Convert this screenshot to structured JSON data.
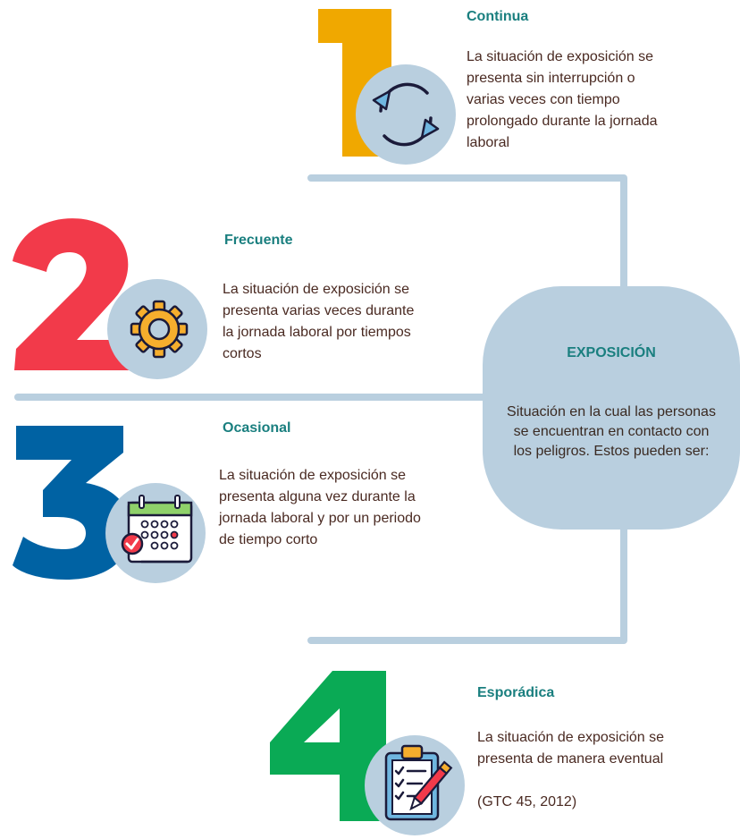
{
  "hub": {
    "title": "EXPOSICIÓN",
    "description": "Situación en la cual las personas se encuentran en contacto con los peligros. Estos pueden ser:"
  },
  "items": [
    {
      "number": "1",
      "color": "#f0a800",
      "icon": "refresh-cycle-icon",
      "title": "Continua",
      "description": "La situación de exposición se presenta sin interrupción o varias veces con tiempo prolongado durante la jornada laboral"
    },
    {
      "number": "2",
      "color": "#f23a4a",
      "icon": "gear-icon",
      "title": "Frecuente",
      "description": "La situación de exposición se presenta varias veces durante la jornada laboral por tiempos cortos"
    },
    {
      "number": "3",
      "color": "#0062a3",
      "icon": "calendar-icon",
      "title": "Ocasional",
      "description": "La situación de exposición se presenta alguna vez durante la jornada laboral y por un periodo de tiempo corto"
    },
    {
      "number": "4",
      "color": "#0aaa55",
      "icon": "clipboard-checklist-icon",
      "title": "Esporádica",
      "description": "La situación de exposición se presenta de manera eventual",
      "citation": "(GTC 45, 2012)"
    }
  ],
  "colors": {
    "connector": "#b9cfdf",
    "title_text": "#1a7f7f",
    "body_text": "#4a2a22"
  }
}
